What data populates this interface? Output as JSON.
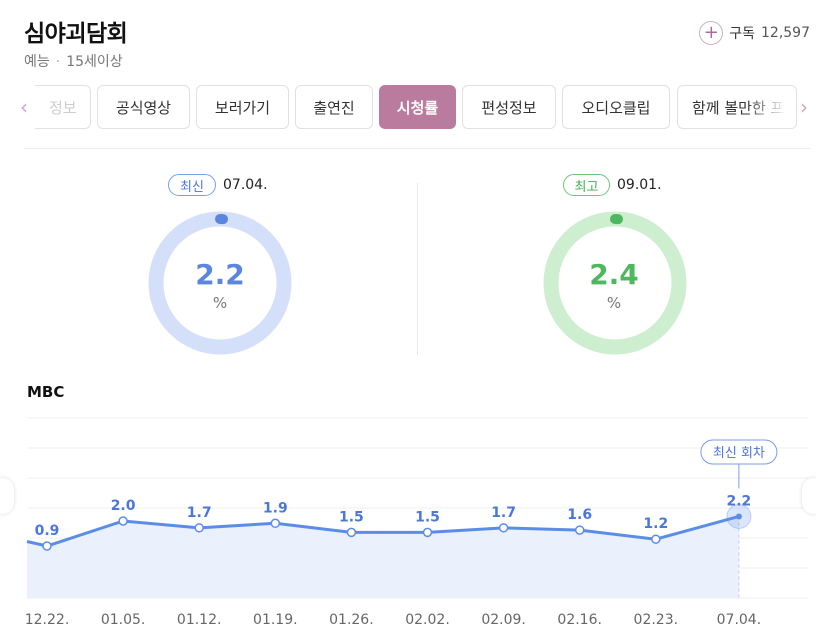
{
  "program": {
    "title": "심야괴담회",
    "genre": "예능",
    "rating": "15세이상",
    "subscribe_icon": "plus-icon",
    "subscribe_label": "구독",
    "subscriber_count": "12,597"
  },
  "tabs": [
    {
      "label": "정보"
    },
    {
      "label": "공식영상"
    },
    {
      "label": "보러가기"
    },
    {
      "label": "출연진"
    },
    {
      "label": "시청률",
      "active": true
    },
    {
      "label": "편성정보"
    },
    {
      "label": "오디오클립"
    },
    {
      "label": "함께 볼만한 프"
    }
  ],
  "summary": {
    "latest": {
      "badge": "최신",
      "date": "07.04.",
      "value": "2.2",
      "unit": "%",
      "color": "#5b86df",
      "track": "#d4e0fa"
    },
    "best": {
      "badge": "최고",
      "date": "09.01.",
      "value": "2.4",
      "unit": "%",
      "color": "#4fb85e",
      "track": "#cdeecf"
    }
  },
  "chart_data": {
    "type": "line",
    "title": "MBC",
    "x": [
      "12.22.",
      "01.05.",
      "01.12.",
      "01.19.",
      "01.26.",
      "02.02.",
      "02.09.",
      "02.16.",
      "02.23.",
      "07.04."
    ],
    "series": [
      {
        "values": [
          0.9,
          2.0,
          1.7,
          1.9,
          1.5,
          1.5,
          1.7,
          1.6,
          1.2,
          2.2
        ]
      }
    ],
    "callout": "최신 회차",
    "colors": {
      "line": "#5b8de6",
      "area": "#eaf1fd"
    }
  }
}
